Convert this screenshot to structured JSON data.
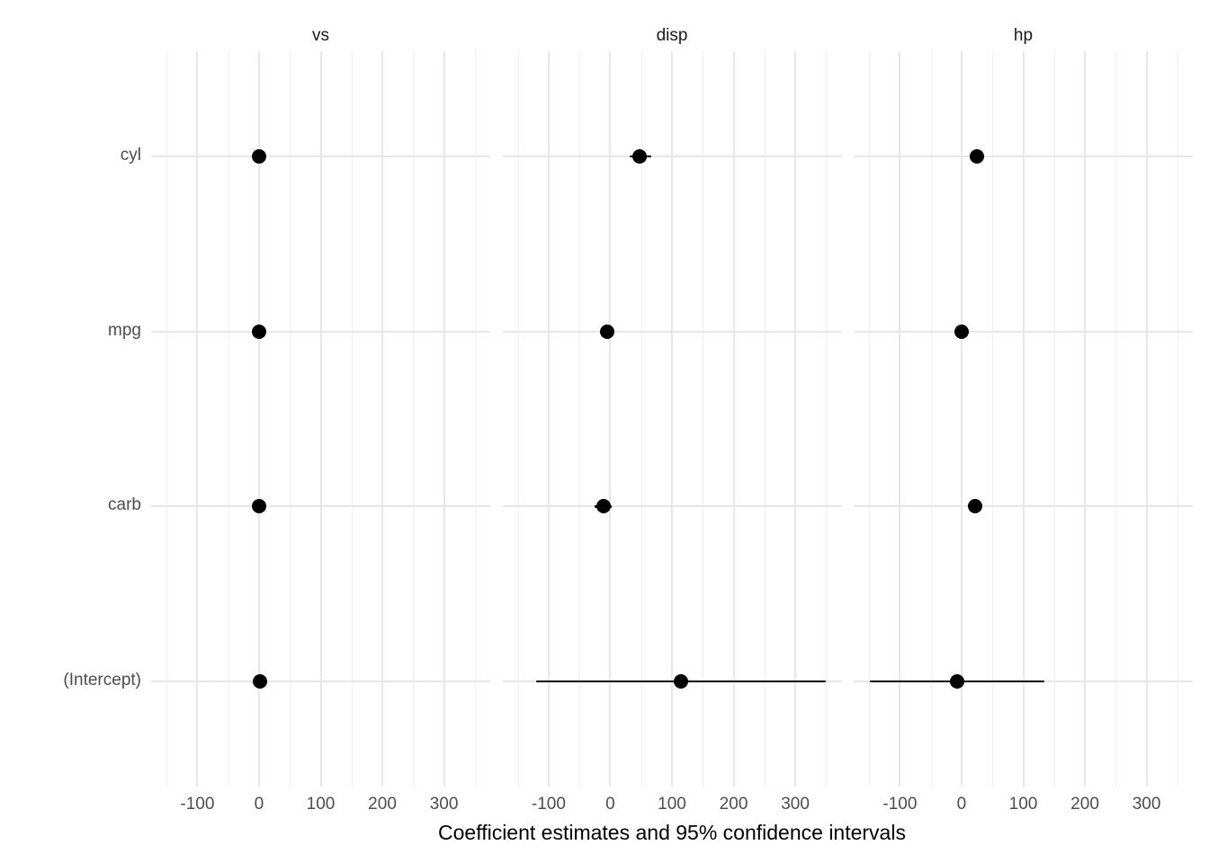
{
  "chart_data": {
    "type": "pointrange",
    "title": "",
    "xlabel": "Coefficient estimates and 95% confidence intervals",
    "ylabel": "",
    "facets": [
      "vs",
      "disp",
      "hp"
    ],
    "categories": [
      "cyl",
      "mpg",
      "carb",
      "(Intercept)"
    ],
    "x_ticks": [
      -100,
      0,
      100,
      200,
      300
    ],
    "x_minor_gridlines": [
      -150,
      -50,
      50,
      150,
      250,
      350
    ],
    "xlim": [
      -175,
      375
    ],
    "grid": true,
    "legend": false,
    "series": [
      {
        "facet": "vs",
        "points": [
          {
            "term": "cyl",
            "estimate": 0,
            "ci_low": 0,
            "ci_high": 0
          },
          {
            "term": "mpg",
            "estimate": 0,
            "ci_low": 0,
            "ci_high": 0
          },
          {
            "term": "carb",
            "estimate": 0,
            "ci_low": 0,
            "ci_high": 0
          },
          {
            "term": "(Intercept)",
            "estimate": 1,
            "ci_low": 0,
            "ci_high": 2
          }
        ]
      },
      {
        "facet": "disp",
        "points": [
          {
            "term": "cyl",
            "estimate": 48,
            "ci_low": 31,
            "ci_high": 67
          },
          {
            "term": "mpg",
            "estimate": -5,
            "ci_low": -13,
            "ci_high": 3
          },
          {
            "term": "carb",
            "estimate": -11,
            "ci_low": -25,
            "ci_high": 2
          },
          {
            "term": "(Intercept)",
            "estimate": 115,
            "ci_low": -120,
            "ci_high": 349
          }
        ]
      },
      {
        "facet": "hp",
        "points": [
          {
            "term": "cyl",
            "estimate": 25,
            "ci_low": 14,
            "ci_high": 36
          },
          {
            "term": "mpg",
            "estimate": 0,
            "ci_low": -8,
            "ci_high": 8
          },
          {
            "term": "carb",
            "estimate": 22,
            "ci_low": 14,
            "ci_high": 30
          },
          {
            "term": "(Intercept)",
            "estimate": -7,
            "ci_low": -149,
            "ci_high": 134
          }
        ]
      }
    ],
    "colors": {
      "point": "#000000",
      "ci_line": "#000000",
      "grid_major": "#e7e7e7",
      "grid_minor": "#efefef",
      "axis_text": "#4d4d4d",
      "strip_text": "#1a1a1a",
      "axis_title": "#000000",
      "background": "#ffffff"
    }
  }
}
